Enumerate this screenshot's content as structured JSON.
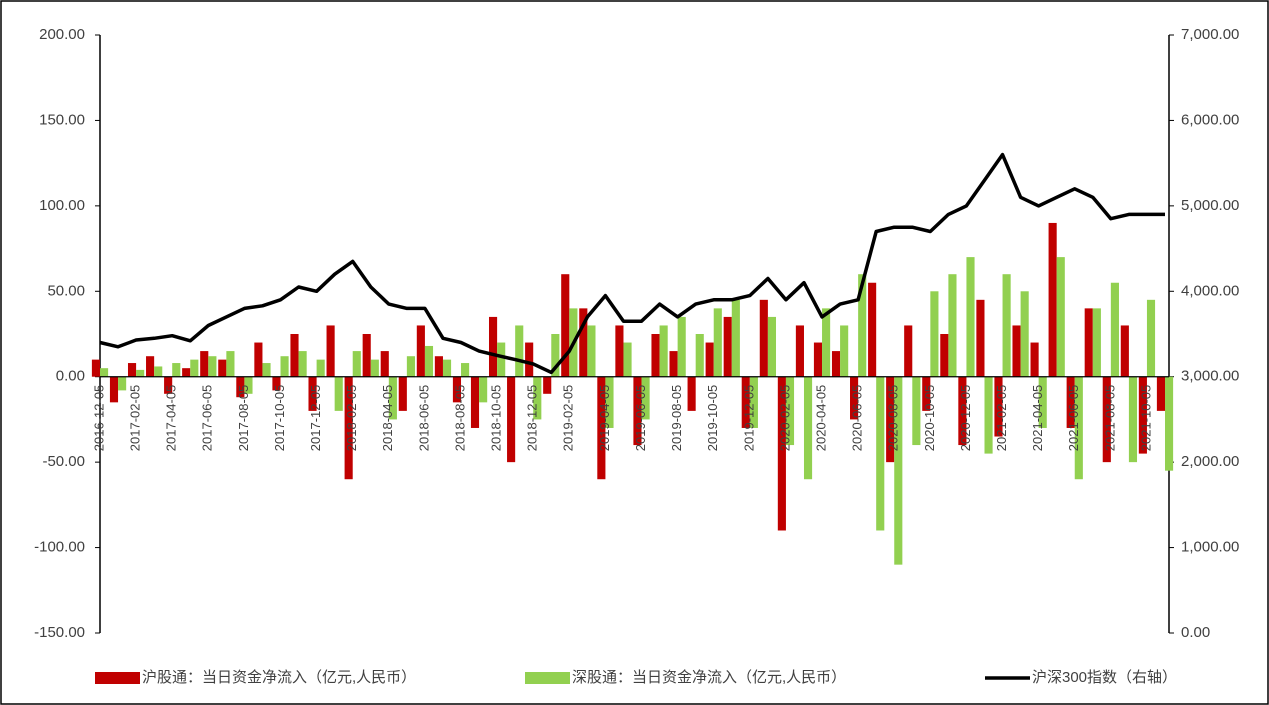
{
  "chart_data": {
    "type": "bar_line",
    "categories": [
      "2016-12-05",
      null,
      "2017-02-05",
      null,
      "2017-04-05",
      null,
      "2017-06-05",
      null,
      "2017-08-05",
      null,
      "2017-10-05",
      null,
      "2017-12-05",
      null,
      "2018-02-05",
      null,
      "2018-04-05",
      null,
      "2018-06-05",
      null,
      "2018-08-05",
      null,
      "2018-10-05",
      null,
      "2018-12-05",
      null,
      "2019-02-05",
      null,
      "2019-04-05",
      null,
      "2019-06-05",
      null,
      "2019-08-05",
      null,
      "2019-10-05",
      null,
      "2019-12-05",
      null,
      "2020-02-05",
      null,
      "2020-04-05",
      null,
      "2020-06-05",
      null,
      "2020-08-05",
      null,
      "2020-10-05",
      null,
      "2020-12-05",
      null,
      "2021-02-05",
      null,
      "2021-04-05",
      null,
      "2021-06-05",
      null,
      "2021-08-05",
      null,
      "2021-10-05",
      null
    ],
    "series": [
      {
        "name": "沪股通：当日资金净流入（亿元,人民币）",
        "color": "#c00000",
        "type": "bar",
        "values": [
          10,
          -15,
          8,
          12,
          -10,
          5,
          15,
          10,
          -12,
          20,
          -8,
          25,
          -20,
          30,
          -60,
          25,
          15,
          -20,
          30,
          12,
          -15,
          -30,
          35,
          -50,
          20,
          -10,
          60,
          40,
          -60,
          30,
          -40,
          25,
          15,
          -20,
          20,
          35,
          -30,
          45,
          -90,
          30,
          20,
          15,
          -25,
          55,
          -50,
          30,
          -20,
          25,
          -40,
          45,
          -35,
          30,
          20,
          90,
          -30,
          40,
          -50,
          30,
          -45,
          -20
        ]
      },
      {
        "name": "深股通：当日资金净流入（亿元,人民币）",
        "color": "#92d050",
        "type": "bar",
        "values": [
          5,
          -8,
          4,
          6,
          8,
          10,
          12,
          15,
          -10,
          8,
          12,
          15,
          10,
          -20,
          15,
          10,
          -25,
          12,
          18,
          10,
          8,
          -15,
          20,
          30,
          -25,
          25,
          40,
          30,
          -30,
          20,
          -25,
          30,
          35,
          25,
          40,
          45,
          -30,
          35,
          -40,
          -60,
          40,
          30,
          60,
          -90,
          -110,
          -40,
          50,
          60,
          70,
          -45,
          60,
          50,
          -30,
          70,
          -60,
          40,
          55,
          -50,
          45,
          -55
        ]
      },
      {
        "name": "沪深300指数（右轴）",
        "color": "#000000",
        "type": "line",
        "axis": "y2",
        "values": [
          3400,
          3350,
          3430,
          3450,
          3480,
          3420,
          3600,
          3700,
          3800,
          3830,
          3900,
          4050,
          4000,
          4200,
          4350,
          4050,
          3850,
          3800,
          3800,
          3450,
          3400,
          3300,
          3250,
          3200,
          3150,
          3050,
          3300,
          3700,
          3950,
          3650,
          3650,
          3850,
          3700,
          3850,
          3900,
          3900,
          3950,
          4150,
          3900,
          4100,
          3700,
          3850,
          3900,
          4700,
          4750,
          4750,
          4700,
          4900,
          5000,
          5300,
          5600,
          5100,
          5000,
          5100,
          5200,
          5100,
          4850,
          4900,
          4900,
          4900
        ]
      }
    ],
    "ylim": [
      -150,
      200
    ],
    "yticks": [
      {
        "value": -150,
        "label": "-150.00"
      },
      {
        "value": -100,
        "label": "-100.00"
      },
      {
        "value": -50,
        "label": "-50.00"
      },
      {
        "value": 0,
        "label": "0.00"
      },
      {
        "value": 50,
        "label": "50.00"
      },
      {
        "value": 100,
        "label": "100.00"
      },
      {
        "value": 150,
        "label": "150.00"
      },
      {
        "value": 200,
        "label": "200.00"
      }
    ],
    "y2lim": [
      0,
      7000
    ],
    "y2ticks": [
      {
        "value": 0,
        "label": "0.00"
      },
      {
        "value": 1000,
        "label": "1,000.00"
      },
      {
        "value": 2000,
        "label": "2,000.00"
      },
      {
        "value": 3000,
        "label": "3,000.00"
      },
      {
        "value": 4000,
        "label": "4,000.00"
      },
      {
        "value": 5000,
        "label": "5,000.00"
      },
      {
        "value": 6000,
        "label": "6,000.00"
      },
      {
        "value": 7000,
        "label": "7,000.00"
      }
    ],
    "legend": "bottom"
  }
}
